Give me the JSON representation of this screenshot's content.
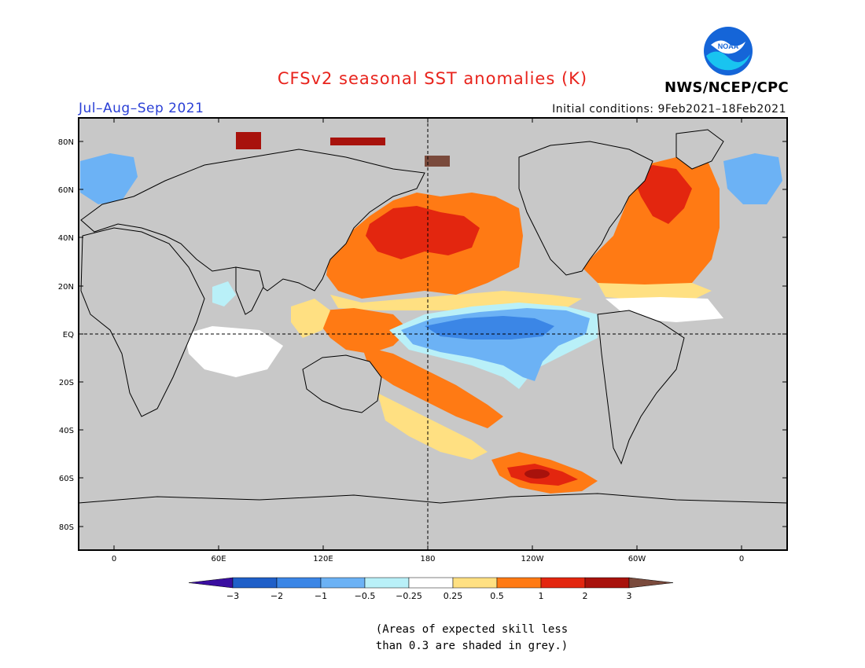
{
  "title": "CFSv2 seasonal SST anomalies (K)",
  "period": "Jul–Aug–Sep 2021",
  "initial_conditions": "Initial conditions: 9Feb2021–18Feb2021",
  "agency": "NWS/NCEP/CPC",
  "logo_text": "NOAA",
  "lat_labels": [
    "80N",
    "60N",
    "40N",
    "20N",
    "EQ",
    "20S",
    "40S",
    "60S",
    "80S"
  ],
  "lon_labels": [
    "0",
    "60E",
    "120E",
    "180",
    "120W",
    "60W",
    "0"
  ],
  "colorbar": {
    "tick_labels": [
      "−3",
      "−2",
      "−1",
      "−0.5",
      "−0.25",
      "0.25",
      "0.5",
      "1",
      "2",
      "3"
    ],
    "colors": [
      "#3a0ea0",
      "#1f5fc8",
      "#3b86e6",
      "#6cb2f5",
      "#b9f0f8",
      "#ffffff",
      "#ffe082",
      "#ff7a14",
      "#e3260f",
      "#a8120c",
      "#7a4a3c"
    ]
  },
  "skill_note": [
    "(Areas of expected skill less",
    "than 0.3 are shaded in grey.)"
  ],
  "colors": {
    "title": "#e8231c",
    "period": "#2a3fd6",
    "skill_grey": "#c8c8c8"
  }
}
